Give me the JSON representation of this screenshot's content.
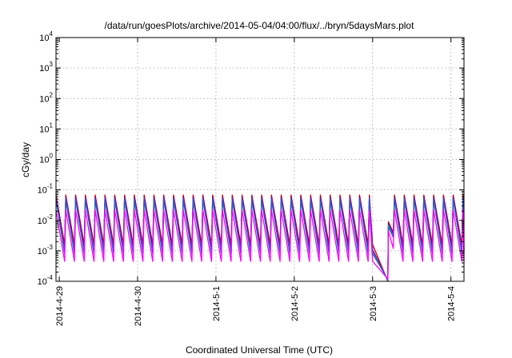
{
  "chart_data": {
    "type": "line",
    "title": "/data/run/goesPlots/archive/2014-05-04/04:00/flux/../bryn/5daysMars.plot",
    "xlabel": "Coordinated Universal Time (UTC)",
    "ylabel": "cGy/day",
    "x_axis": {
      "range_days": [
        "2014-04-28T23:00",
        "2014-05-04T04:00"
      ],
      "ticks": [
        {
          "date": "2014-04-29T00:00",
          "label": "2014-4-29"
        },
        {
          "date": "2014-04-30T00:00",
          "label": "2014-4-30"
        },
        {
          "date": "2014-05-01T00:00",
          "label": "2014-5-1"
        },
        {
          "date": "2014-05-02T00:00",
          "label": "2014-5-2"
        },
        {
          "date": "2014-05-03T00:00",
          "label": "2014-5-3"
        },
        {
          "date": "2014-05-04T00:00",
          "label": "2014-5-4"
        }
      ]
    },
    "y_axis": {
      "scale": "log",
      "ylim": [
        0.0001,
        10000
      ],
      "ticks": [
        {
          "value": 0.0001,
          "base": "10",
          "exp": "-4"
        },
        {
          "value": 0.001,
          "base": "10",
          "exp": "-3"
        },
        {
          "value": 0.01,
          "base": "10",
          "exp": "-2"
        },
        {
          "value": 0.1,
          "base": "10",
          "exp": "-1"
        },
        {
          "value": 1,
          "base": "10",
          "exp": "0"
        },
        {
          "value": 10,
          "base": "10",
          "exp": "1"
        },
        {
          "value": 100,
          "base": "10",
          "exp": "2"
        },
        {
          "value": 1000,
          "base": "10",
          "exp": "3"
        },
        {
          "value": 10000,
          "base": "10",
          "exp": "4"
        }
      ]
    },
    "grid": true,
    "legend": "none",
    "pattern": {
      "cycle_period_hours": 3,
      "first_peak": "2014-04-28T23:00",
      "dropout_start": "2014-05-03T00:00",
      "dropout_min": "2014-05-03T04:40",
      "dropout_recovery_peak": "2014-05-03T04:50",
      "dropout_recovery_end": "2014-05-03T06:20"
    },
    "series": [
      {
        "color": "#cc0000",
        "peak": 0.068,
        "trough": 0.0016,
        "recovery_peak": 0.009,
        "recovery_value": 0.004
      },
      {
        "color": "#800080",
        "peak": 0.06,
        "trough": 0.0011,
        "recovery_peak": 0.008,
        "recovery_value": 0.0035
      },
      {
        "color": "#00aaaa",
        "peak": 0.045,
        "trough": 0.0009,
        "recovery_peak": 0.007,
        "recovery_value": 0.003
      },
      {
        "color": "#3355dd",
        "peak": 0.052,
        "trough": 0.0008,
        "recovery_peak": 0.006,
        "recovery_value": 0.0028
      },
      {
        "color": "#ff00ff",
        "peak": 0.022,
        "trough": 0.00045,
        "recovery_peak": 0.0045,
        "recovery_value": 0.0012
      }
    ]
  }
}
